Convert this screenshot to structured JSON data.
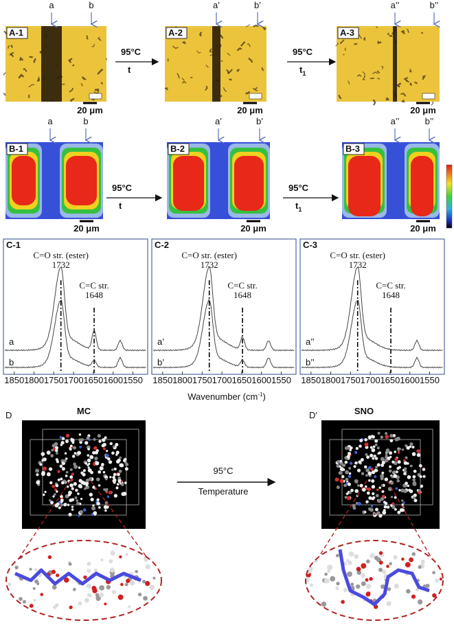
{
  "panels_a": [
    {
      "label": "A-1",
      "markers": [
        "a",
        "b"
      ],
      "scale": "20 μm"
    },
    {
      "label": "A-2",
      "markers": [
        "a’",
        "b’"
      ],
      "scale": "20 μm"
    },
    {
      "label": "A-3",
      "markers": [
        "a’’",
        "b’’"
      ],
      "scale": "20 μm"
    }
  ],
  "arrows_a": [
    {
      "temperature": "95°C",
      "time": "t"
    },
    {
      "temperature": "95°C",
      "time": "t",
      "time_sub": "1"
    }
  ],
  "panels_b": [
    {
      "label": "B-1",
      "markers": [
        "a",
        "b"
      ],
      "scale": "20 μm"
    },
    {
      "label": "B-2",
      "markers": [
        "a’",
        "b’"
      ],
      "scale": "20 μm"
    },
    {
      "label": "B-3",
      "markers": [
        "a’’",
        "b’’"
      ],
      "scale": "20 μm"
    }
  ],
  "arrows_b": [
    {
      "temperature": "95°C",
      "time": "t"
    },
    {
      "temperature": "95°C",
      "time": "t",
      "time_sub": "1"
    }
  ],
  "spectra": {
    "panels": [
      {
        "label": "C-1",
        "traces": [
          "a",
          "b"
        ],
        "peaks": [
          {
            "name": "C=O str. (ester)",
            "value": 1732,
            "in_spectrum": true
          },
          {
            "name": "C=C str.",
            "value": 1648,
            "in_spectrum": true
          }
        ]
      },
      {
        "label": "C-2",
        "traces": [
          "a’",
          "b’"
        ],
        "peaks": [
          {
            "name": "C=O str. (ester)",
            "value": 1732,
            "in_spectrum": true
          },
          {
            "name": "C=C str.",
            "value": 1648,
            "in_spectrum": true
          }
        ]
      },
      {
        "label": "C-3",
        "traces": [
          "a’’",
          "b’’"
        ],
        "peaks": [
          {
            "name": "C=O str. (ester)",
            "value": 1732,
            "in_spectrum": true
          },
          {
            "name": "C=C str.",
            "value": 1648,
            "in_spectrum": false
          }
        ]
      }
    ],
    "xlim": [
      1860,
      1530
    ],
    "xticks": [
      1850,
      1800,
      1750,
      1700,
      1650,
      1600,
      1550
    ],
    "xlabel": "Wavenumber (cm",
    "xlabel_sup": "-1",
    "xlabel_end": ")"
  },
  "molecules": {
    "left": {
      "letter": "D",
      "name": "MC"
    },
    "right": {
      "letter": "D′",
      "name": "SNO"
    },
    "arrow": {
      "temperature": "95°C",
      "caption": "Temperature"
    }
  }
}
